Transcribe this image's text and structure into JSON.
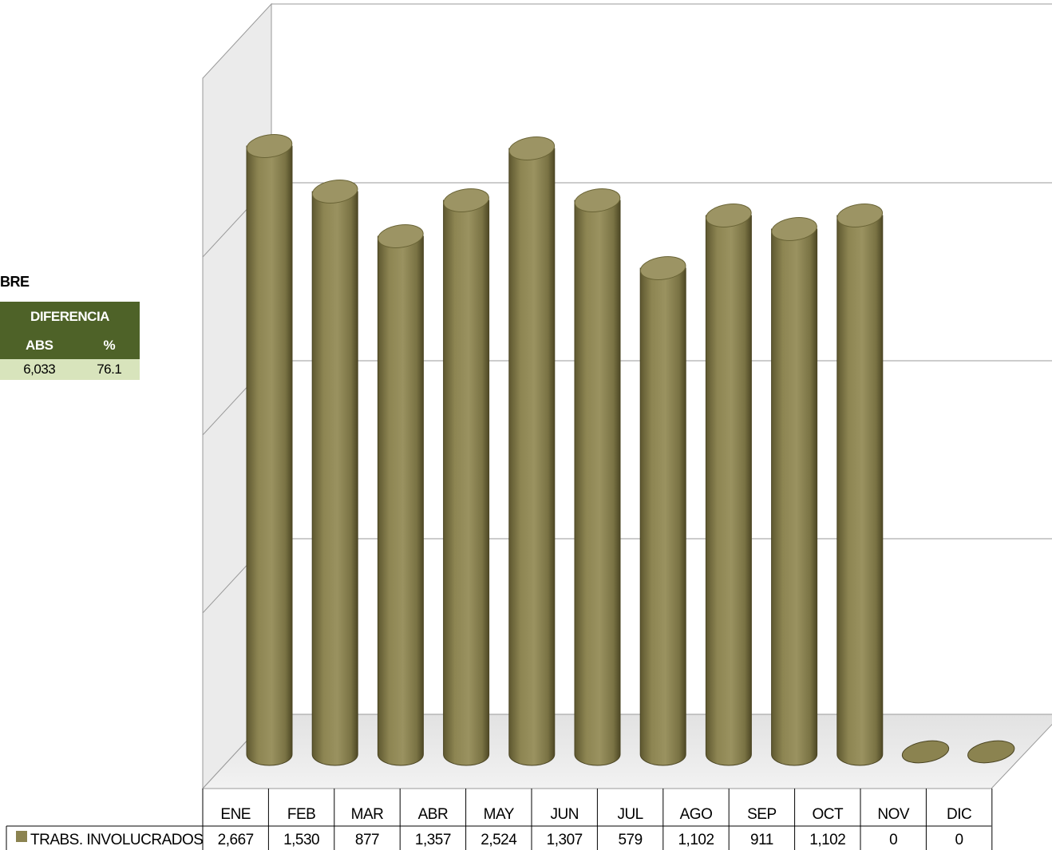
{
  "side_panel": {
    "title": "BRE",
    "header": "DIFERENCIA",
    "col_abs": "ABS",
    "col_pct": "%",
    "val_abs": "6,033",
    "val_pct": "76.1"
  },
  "chart_data": {
    "type": "bar",
    "style": "3d-cylinder",
    "categories": [
      "ENE",
      "FEB",
      "MAR",
      "ABR",
      "MAY",
      "JUN",
      "JUL",
      "AGO",
      "SEP",
      "OCT",
      "NOV",
      "DIC"
    ],
    "series": [
      {
        "name": "TRABS. INVOLUCRADOS",
        "values": [
          2667,
          1530,
          877,
          1357,
          2524,
          1307,
          579,
          1102,
          911,
          1102,
          0,
          0
        ],
        "value_labels": [
          "2,667",
          "1,530",
          "877",
          "1,357",
          "2,524",
          "1,307",
          "579",
          "1,102",
          "911",
          "1,102",
          "0",
          "0"
        ],
        "color": "#8b8350"
      }
    ],
    "legend_position": "data-table",
    "gridlines": true
  }
}
